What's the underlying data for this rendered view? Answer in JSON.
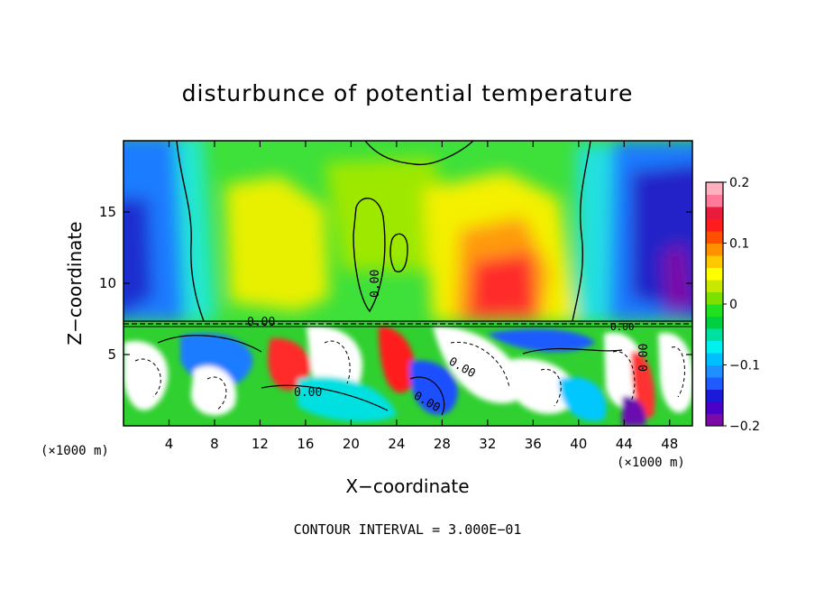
{
  "chart_data": {
    "type": "heatmap",
    "title": "disturbunce of potential temperature",
    "xlabel": "X−coordinate",
    "ylabel": "Z−coordinate",
    "x_unit_left": "(×1000 m)",
    "x_unit_right": "(×1000 m)",
    "xlim": [
      0,
      50
    ],
    "ylim": [
      0,
      20
    ],
    "x_ticks": [
      4,
      8,
      12,
      16,
      20,
      24,
      28,
      32,
      36,
      40,
      44,
      48
    ],
    "x_tick_labels": [
      "4",
      "8",
      "12",
      "16",
      "20",
      "24",
      "28",
      "32",
      "36",
      "40",
      "44",
      "48"
    ],
    "y_ticks": [
      5,
      10,
      15
    ],
    "y_tick_labels": [
      "5",
      "10",
      "15"
    ],
    "colorbar": {
      "range": [
        -0.2,
        0.2
      ],
      "ticks": [
        -0.2,
        -0.1,
        0,
        0.1,
        0.2
      ],
      "tick_labels": [
        "−0.2",
        "−0.1",
        "0",
        "0.1",
        "0.2"
      ],
      "colors": [
        "#7b0aa8",
        "#4b00c8",
        "#1a1ad8",
        "#1f5bff",
        "#1e90ff",
        "#00bfff",
        "#00f0f0",
        "#00e0a0",
        "#00d040",
        "#20e020",
        "#7ee000",
        "#c8e800",
        "#ffff00",
        "#ffc800",
        "#ff9000",
        "#ff5000",
        "#ff1c1c",
        "#e81c3c",
        "#ff7a9a",
        "#ffb0c0"
      ]
    },
    "contour_labels": [
      "0.00",
      "0.00",
      "0.00",
      "0.00",
      "0.00",
      "0.00",
      "0.00"
    ],
    "footer": "CONTOUR INTERVAL = 3.000E−01"
  }
}
